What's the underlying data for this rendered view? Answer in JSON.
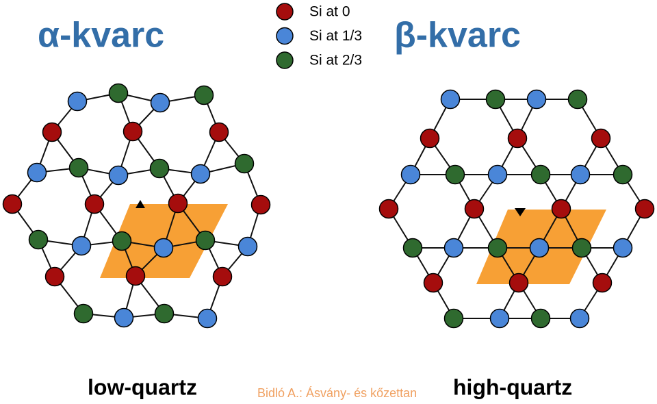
{
  "titles": {
    "alpha": "α-kvarc",
    "beta": "β-kvarc"
  },
  "legend": [
    {
      "label": "Si at 0",
      "color": "#a50d0d"
    },
    {
      "label": "Si at 1/3",
      "color": "#4a86d8"
    },
    {
      "label": "Si at 2/3",
      "color": "#2f6a2f"
    }
  ],
  "captions": {
    "low": "low-quartz",
    "high": "high-quartz"
  },
  "credit": "Bidló A.: Ásvány- és kőzettan"
}
